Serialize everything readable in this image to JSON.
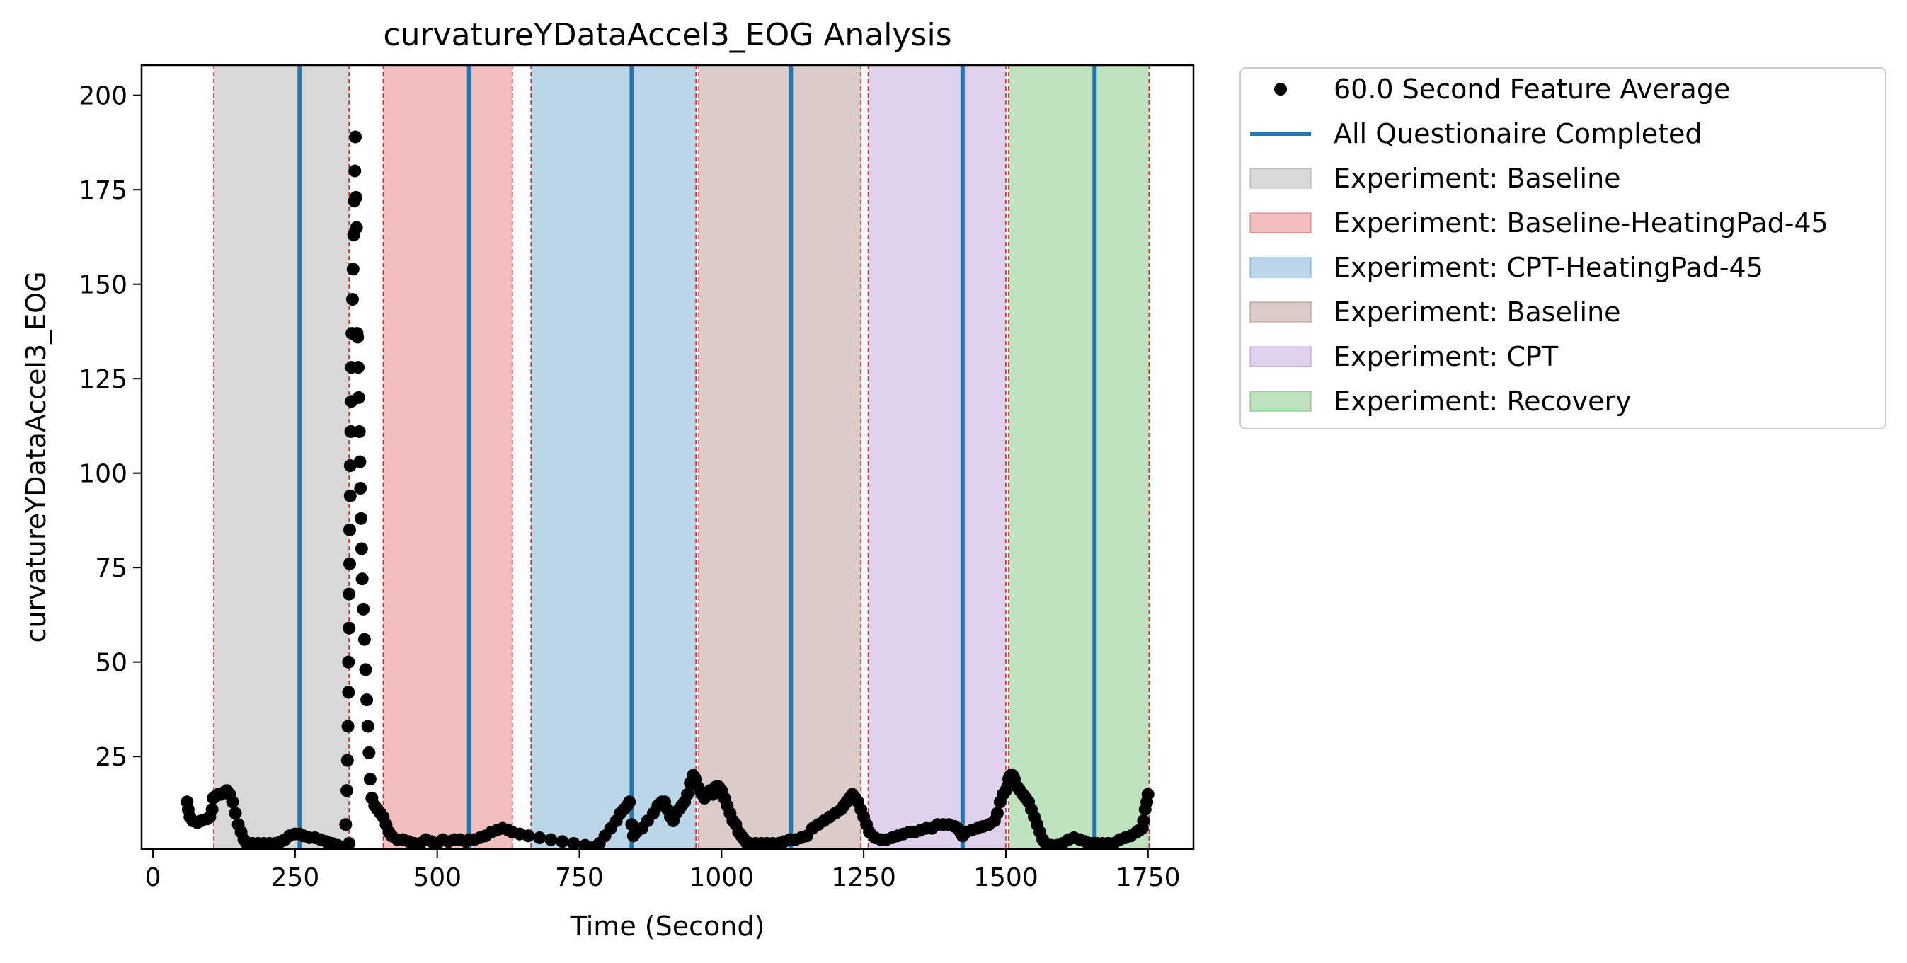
{
  "chart_data": {
    "type": "scatter",
    "title": "curvatureYDataAccel3_EOG Analysis",
    "xlabel": "Time (Second)",
    "ylabel": "curvatureYDataAccel3_EOG",
    "xlim": [
      -20,
      1830
    ],
    "ylim": [
      0.5,
      208
    ],
    "xticks": [
      0,
      250,
      500,
      750,
      1000,
      1250,
      1500,
      1750
    ],
    "yticks": [
      25,
      50,
      75,
      100,
      125,
      150,
      175,
      200
    ],
    "legend_position": "outside-right-top",
    "regions": [
      {
        "label": "Experiment: Baseline",
        "start": 107,
        "end": 345,
        "color": "#7f7f7f"
      },
      {
        "label": "Experiment: Baseline-HeatingPad-45",
        "start": 405,
        "end": 632,
        "color": "#d62728"
      },
      {
        "label": "Experiment: CPT-HeatingPad-45",
        "start": 665,
        "end": 955,
        "color": "#1f77b4"
      },
      {
        "label": "Experiment: Baseline",
        "start": 960,
        "end": 1245,
        "color": "#8c564b"
      },
      {
        "label": "Experiment: CPT",
        "start": 1258,
        "end": 1500,
        "color": "#9467bd"
      },
      {
        "label": "Experiment: Recovery",
        "start": 1505,
        "end": 1752,
        "color": "#2ca02c"
      }
    ],
    "questionnaire_times": [
      258,
      556,
      842,
      1122,
      1424,
      1656
    ],
    "series": [
      {
        "name": "60.0 Second Feature Average",
        "color": "#000000",
        "points": [
          [
            60,
            13
          ],
          [
            62,
            11
          ],
          [
            65,
            9
          ],
          [
            70,
            8
          ],
          [
            78,
            7.5
          ],
          [
            85,
            8
          ],
          [
            95,
            8.5
          ],
          [
            100,
            9
          ],
          [
            104,
            11
          ],
          [
            106,
            14
          ],
          [
            110,
            14.5
          ],
          [
            115,
            15
          ],
          [
            120,
            15
          ],
          [
            125,
            15.5
          ],
          [
            130,
            16
          ],
          [
            135,
            15
          ],
          [
            140,
            13
          ],
          [
            145,
            10
          ],
          [
            150,
            7
          ],
          [
            155,
            5
          ],
          [
            160,
            3
          ],
          [
            165,
            2
          ],
          [
            175,
            2
          ],
          [
            185,
            2
          ],
          [
            195,
            2
          ],
          [
            205,
            2
          ],
          [
            215,
            2
          ],
          [
            225,
            2.5
          ],
          [
            232,
            3
          ],
          [
            240,
            4
          ],
          [
            250,
            4.5
          ],
          [
            258,
            4.5
          ],
          [
            265,
            4
          ],
          [
            275,
            3.5
          ],
          [
            285,
            3.5
          ],
          [
            295,
            3
          ],
          [
            305,
            2.5
          ],
          [
            315,
            2
          ],
          [
            325,
            1.5
          ],
          [
            335,
            1
          ],
          [
            345,
            2
          ],
          [
            339,
            7
          ],
          [
            341,
            16
          ],
          [
            342,
            24
          ],
          [
            343,
            33
          ],
          [
            344,
            42
          ],
          [
            344,
            50
          ],
          [
            345,
            59
          ],
          [
            345,
            68
          ],
          [
            346,
            76
          ],
          [
            346,
            85
          ],
          [
            347,
            94
          ],
          [
            347,
            102
          ],
          [
            348,
            111
          ],
          [
            349,
            119
          ],
          [
            349,
            128
          ],
          [
            350,
            137
          ],
          [
            351,
            146
          ],
          [
            352,
            154
          ],
          [
            353,
            163
          ],
          [
            354,
            172
          ],
          [
            355,
            180
          ],
          [
            356,
            189
          ],
          [
            357,
            173
          ],
          [
            358,
            165
          ],
          [
            359,
            137
          ],
          [
            360,
            136
          ],
          [
            361,
            128
          ],
          [
            362,
            120
          ],
          [
            363,
            111
          ],
          [
            364,
            103
          ],
          [
            365,
            96
          ],
          [
            366,
            88
          ],
          [
            367,
            80
          ],
          [
            368,
            72
          ],
          [
            370,
            64
          ],
          [
            372,
            56
          ],
          [
            374,
            48
          ],
          [
            376,
            40
          ],
          [
            378,
            33
          ],
          [
            380,
            26
          ],
          [
            382,
            19
          ],
          [
            385,
            14
          ],
          [
            390,
            12
          ],
          [
            395,
            11
          ],
          [
            400,
            10
          ],
          [
            405,
            9
          ],
          [
            410,
            7
          ],
          [
            415,
            5
          ],
          [
            420,
            4
          ],
          [
            430,
            3
          ],
          [
            440,
            3
          ],
          [
            450,
            2.5
          ],
          [
            460,
            2
          ],
          [
            470,
            2
          ],
          [
            480,
            3
          ],
          [
            490,
            2.5
          ],
          [
            500,
            2
          ],
          [
            510,
            3
          ],
          [
            520,
            2.5
          ],
          [
            530,
            3
          ],
          [
            540,
            3
          ],
          [
            550,
            2.5
          ],
          [
            556,
            3
          ],
          [
            565,
            3
          ],
          [
            575,
            3.5
          ],
          [
            585,
            4
          ],
          [
            595,
            5
          ],
          [
            605,
            5.5
          ],
          [
            615,
            6
          ],
          [
            625,
            5.5
          ],
          [
            632,
            5
          ],
          [
            645,
            4.5
          ],
          [
            660,
            4
          ],
          [
            680,
            3.5
          ],
          [
            700,
            3
          ],
          [
            720,
            2.5
          ],
          [
            740,
            2
          ],
          [
            760,
            1.5
          ],
          [
            775,
            1
          ],
          [
            785,
            2
          ],
          [
            795,
            4
          ],
          [
            805,
            6
          ],
          [
            815,
            8
          ],
          [
            822,
            10
          ],
          [
            828,
            11
          ],
          [
            834,
            12
          ],
          [
            838,
            13
          ],
          [
            842,
            7
          ],
          [
            845,
            4
          ],
          [
            850,
            5
          ],
          [
            860,
            6
          ],
          [
            870,
            8
          ],
          [
            880,
            10
          ],
          [
            888,
            12
          ],
          [
            895,
            13
          ],
          [
            900,
            13
          ],
          [
            905,
            11
          ],
          [
            910,
            9
          ],
          [
            915,
            8
          ],
          [
            920,
            10
          ],
          [
            925,
            11
          ],
          [
            930,
            12
          ],
          [
            935,
            13
          ],
          [
            940,
            15
          ],
          [
            945,
            18
          ],
          [
            950,
            20
          ],
          [
            955,
            19
          ],
          [
            958,
            17
          ],
          [
            962,
            16
          ],
          [
            966,
            15
          ],
          [
            970,
            14
          ],
          [
            975,
            15
          ],
          [
            980,
            16
          ],
          [
            985,
            15
          ],
          [
            990,
            17
          ],
          [
            995,
            17
          ],
          [
            1000,
            16
          ],
          [
            1005,
            14
          ],
          [
            1010,
            12
          ],
          [
            1015,
            10
          ],
          [
            1020,
            8
          ],
          [
            1025,
            7
          ],
          [
            1030,
            5
          ],
          [
            1035,
            4
          ],
          [
            1040,
            3
          ],
          [
            1045,
            2
          ],
          [
            1050,
            2
          ],
          [
            1060,
            2
          ],
          [
            1070,
            2
          ],
          [
            1080,
            2
          ],
          [
            1090,
            2
          ],
          [
            1100,
            2
          ],
          [
            1110,
            2.5
          ],
          [
            1120,
            3
          ],
          [
            1130,
            3
          ],
          [
            1140,
            3.5
          ],
          [
            1150,
            4
          ],
          [
            1160,
            6
          ],
          [
            1170,
            7
          ],
          [
            1180,
            8
          ],
          [
            1190,
            9
          ],
          [
            1200,
            10
          ],
          [
            1210,
            11
          ],
          [
            1215,
            12
          ],
          [
            1220,
            13
          ],
          [
            1225,
            14
          ],
          [
            1230,
            15
          ],
          [
            1235,
            14
          ],
          [
            1240,
            13
          ],
          [
            1245,
            11
          ],
          [
            1250,
            9
          ],
          [
            1255,
            7
          ],
          [
            1260,
            5
          ],
          [
            1270,
            3.5
          ],
          [
            1280,
            3
          ],
          [
            1290,
            3
          ],
          [
            1300,
            3.5
          ],
          [
            1310,
            4
          ],
          [
            1320,
            4.5
          ],
          [
            1330,
            5
          ],
          [
            1340,
            5
          ],
          [
            1350,
            5.5
          ],
          [
            1360,
            6
          ],
          [
            1370,
            6
          ],
          [
            1380,
            7
          ],
          [
            1390,
            7
          ],
          [
            1400,
            7
          ],
          [
            1410,
            6.5
          ],
          [
            1415,
            6
          ],
          [
            1420,
            5
          ],
          [
            1424,
            4
          ],
          [
            1430,
            5
          ],
          [
            1440,
            5.5
          ],
          [
            1450,
            6
          ],
          [
            1460,
            6.5
          ],
          [
            1470,
            7
          ],
          [
            1480,
            8
          ],
          [
            1485,
            10
          ],
          [
            1490,
            13
          ],
          [
            1495,
            15
          ],
          [
            1500,
            16
          ],
          [
            1503,
            17
          ],
          [
            1505,
            19
          ],
          [
            1508,
            20
          ],
          [
            1512,
            20
          ],
          [
            1515,
            19
          ],
          [
            1520,
            17
          ],
          [
            1525,
            16
          ],
          [
            1530,
            15
          ],
          [
            1535,
            14
          ],
          [
            1540,
            13
          ],
          [
            1545,
            11
          ],
          [
            1550,
            9
          ],
          [
            1555,
            7
          ],
          [
            1560,
            5
          ],
          [
            1565,
            3
          ],
          [
            1570,
            2
          ],
          [
            1580,
            1.5
          ],
          [
            1590,
            1.5
          ],
          [
            1600,
            2
          ],
          [
            1610,
            3
          ],
          [
            1620,
            3.5
          ],
          [
            1630,
            3
          ],
          [
            1640,
            2.5
          ],
          [
            1650,
            2
          ],
          [
            1656,
            2
          ],
          [
            1660,
            2
          ],
          [
            1670,
            2
          ],
          [
            1680,
            2
          ],
          [
            1690,
            2
          ],
          [
            1700,
            3
          ],
          [
            1710,
            3.5
          ],
          [
            1720,
            4
          ],
          [
            1730,
            5
          ],
          [
            1735,
            5.5
          ],
          [
            1740,
            6
          ],
          [
            1742,
            8
          ],
          [
            1745,
            11
          ],
          [
            1748,
            13
          ],
          [
            1750,
            15
          ]
        ]
      }
    ],
    "legend": [
      {
        "kind": "marker",
        "label": "60.0 Second Feature Average",
        "color": "#000000"
      },
      {
        "kind": "line",
        "label": "All Questionaire Completed",
        "color": "#1f77b4"
      },
      {
        "kind": "patch",
        "label": "Experiment: Baseline",
        "color": "#7f7f7f"
      },
      {
        "kind": "patch",
        "label": "Experiment: Baseline-HeatingPad-45",
        "color": "#d62728"
      },
      {
        "kind": "patch",
        "label": "Experiment: CPT-HeatingPad-45",
        "color": "#1f77b4"
      },
      {
        "kind": "patch",
        "label": "Experiment: Baseline",
        "color": "#8c564b"
      },
      {
        "kind": "patch",
        "label": "Experiment: CPT",
        "color": "#9467bd"
      },
      {
        "kind": "patch",
        "label": "Experiment: Recovery",
        "color": "#2ca02c"
      }
    ]
  }
}
